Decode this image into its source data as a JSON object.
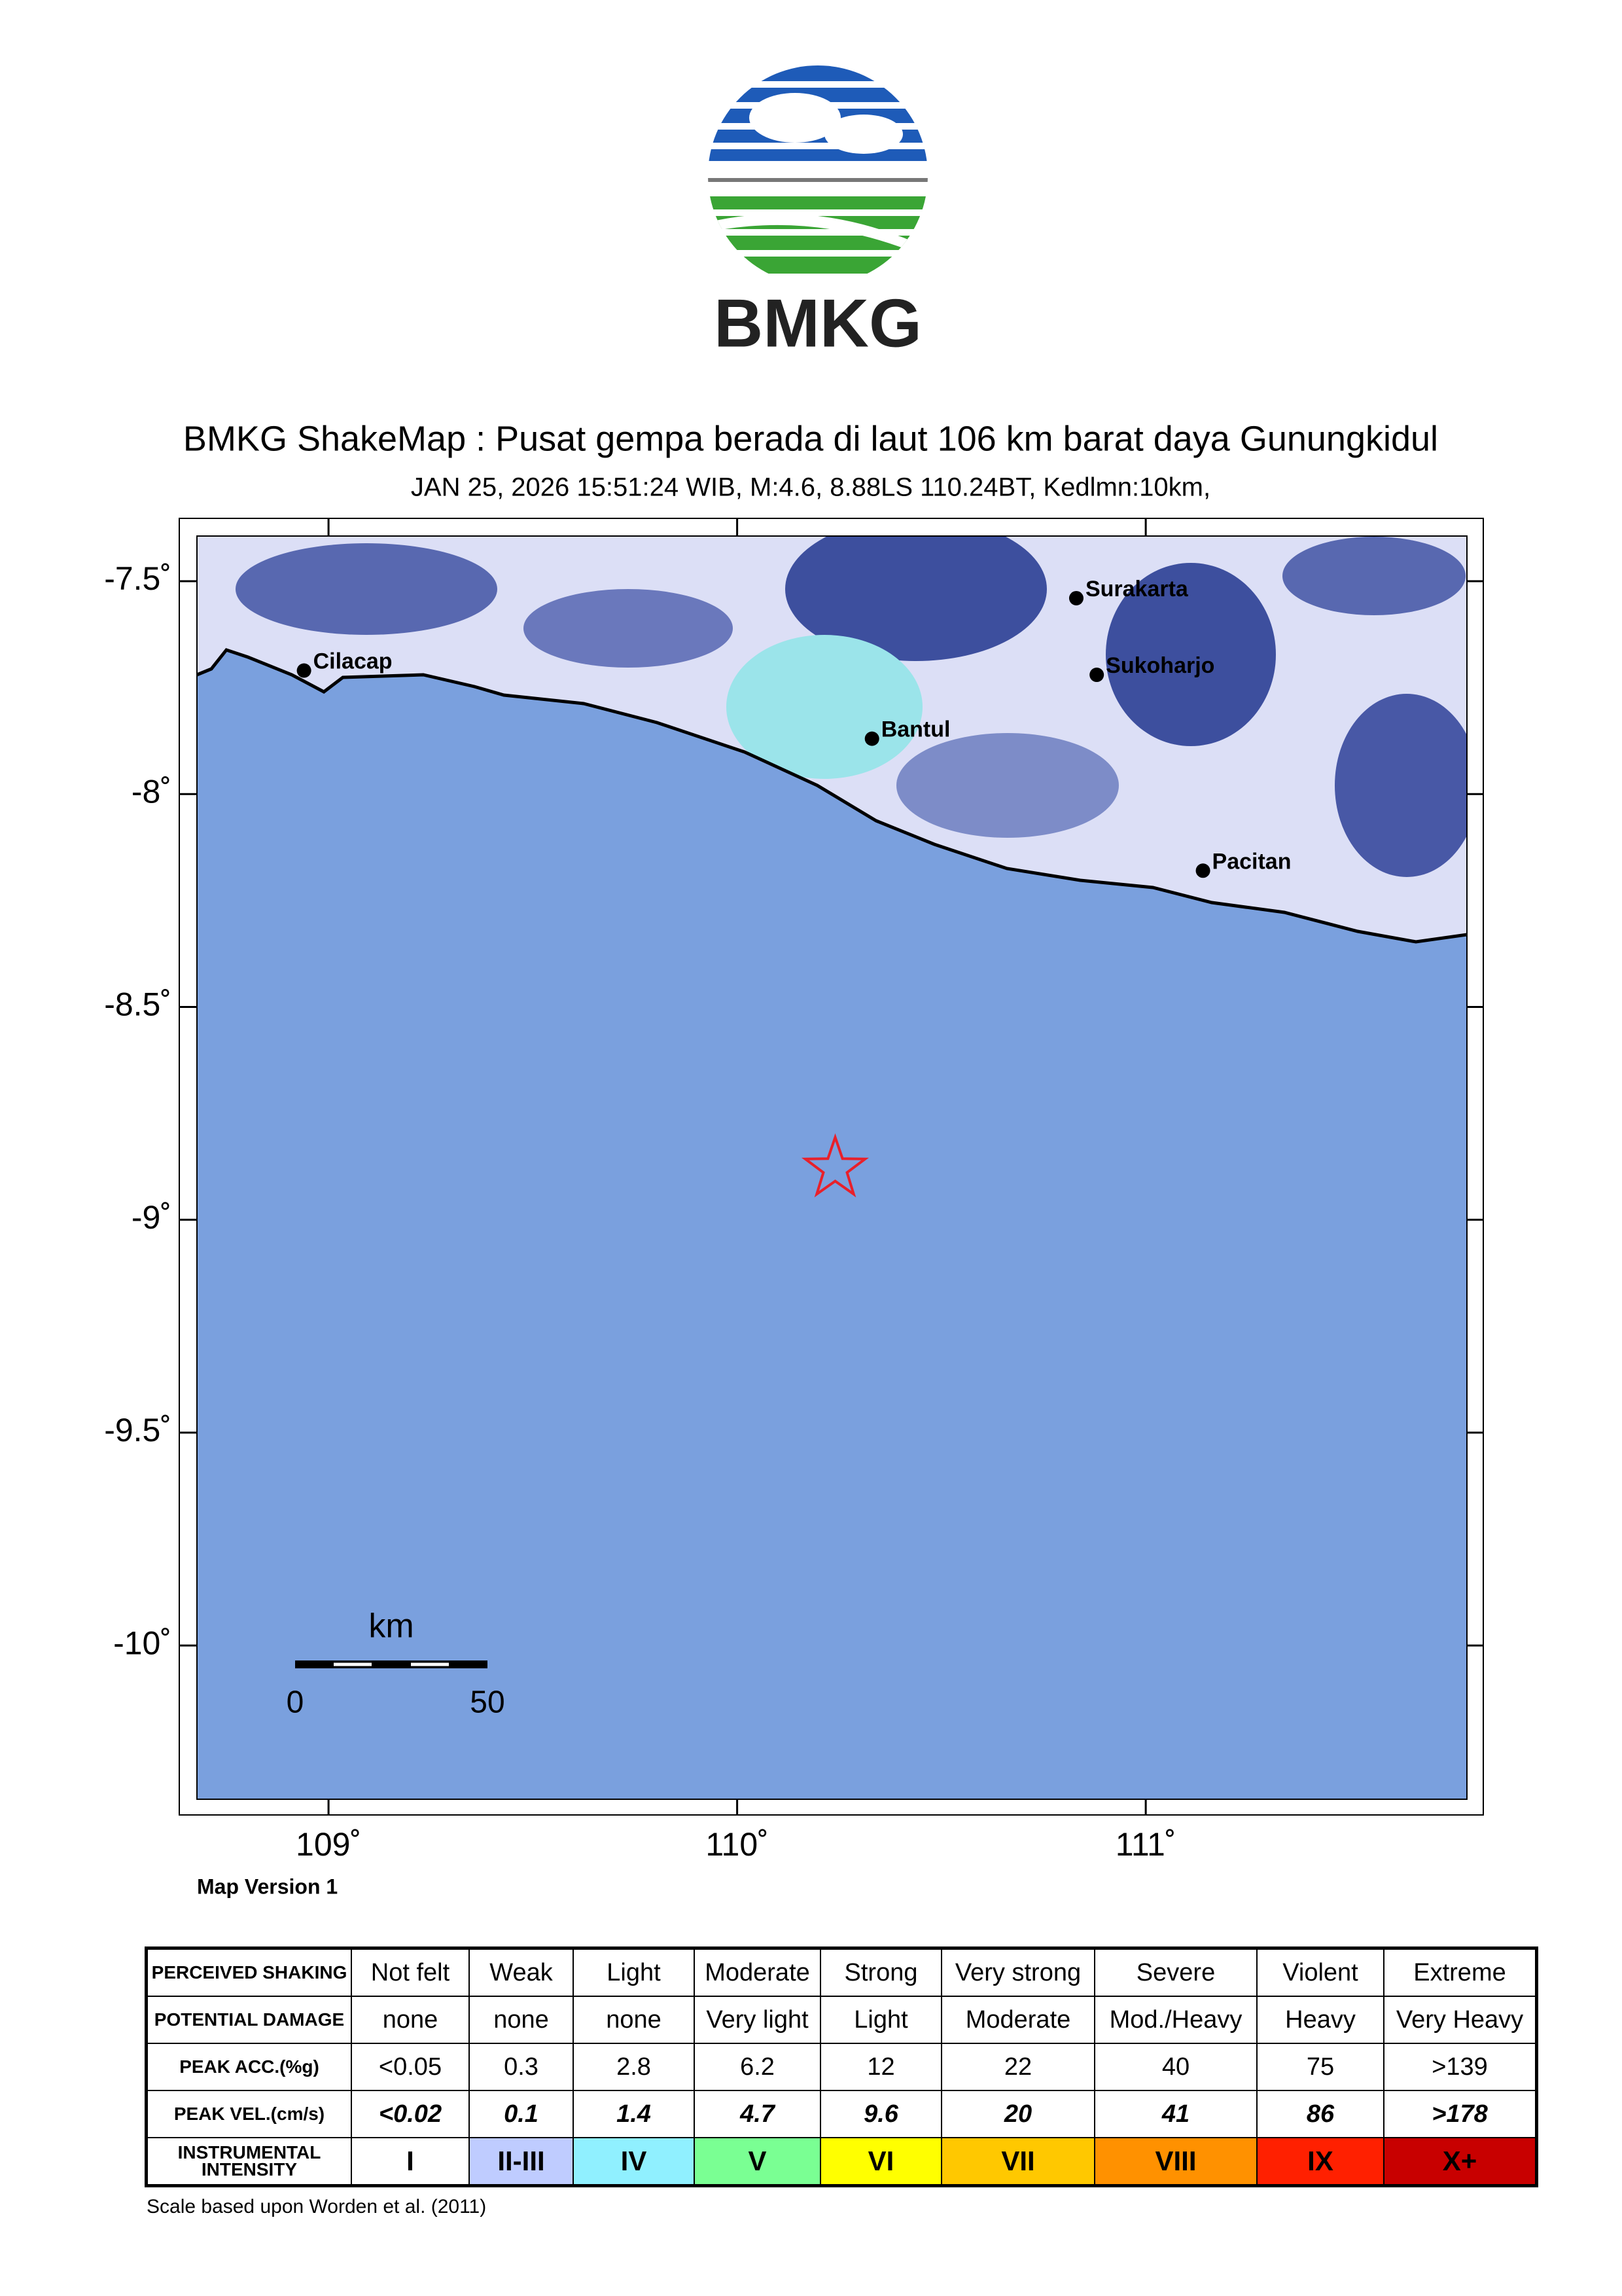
{
  "logo": {
    "text": "BMKG"
  },
  "chart_data": {
    "type": "map",
    "title": "BMKG ShakeMap : Pusat gempa berada di laut 106 km barat daya Gunungkidul",
    "subtitle": "JAN 25, 2026 15:51:24 WIB, M:4.6, 8.88LS 110.24BT, Kedlmn:10km,",
    "xlim": [
      108.678,
      111.786
    ],
    "ylim": [
      -10.361,
      -7.394
    ],
    "xticks": [
      {
        "value": 109,
        "label": "109˚"
      },
      {
        "value": 110,
        "label": "110˚"
      },
      {
        "value": 111,
        "label": "111˚"
      }
    ],
    "yticks": [
      {
        "value": -7.5,
        "label": "-7.5˚"
      },
      {
        "value": -8,
        "label": "-8˚"
      },
      {
        "value": -8.5,
        "label": "-8.5˚"
      },
      {
        "value": -9,
        "label": "-9˚"
      },
      {
        "value": -9.5,
        "label": "-9.5˚"
      },
      {
        "value": -10,
        "label": "-10˚"
      }
    ],
    "cities": [
      {
        "name": "Cilacap",
        "lat": -7.71,
        "lon": 108.94
      },
      {
        "name": "Bantul",
        "lat": -7.87,
        "lon": 110.33
      },
      {
        "name": "Surakarta",
        "lat": -7.54,
        "lon": 110.83
      },
      {
        "name": "Sukoharjo",
        "lat": -7.72,
        "lon": 110.88
      },
      {
        "name": "Pacitan",
        "lat": -8.18,
        "lon": 111.14
      }
    ],
    "epicenter": {
      "lat": -8.88,
      "lon": 110.24,
      "color": "#e8202a"
    },
    "scale_bar": {
      "label": "km",
      "ticks": [
        0,
        50
      ]
    },
    "map_version": "Map Version 1"
  },
  "legend_table": {
    "rows": [
      {
        "header": "PERCEIVED SHAKING",
        "cells": [
          "Not felt",
          "Weak",
          "Light",
          "Moderate",
          "Strong",
          "Very strong",
          "Severe",
          "Violent",
          "Extreme"
        ]
      },
      {
        "header": "POTENTIAL DAMAGE",
        "cells": [
          "none",
          "none",
          "none",
          "Very light",
          "Light",
          "Moderate",
          "Mod./Heavy",
          "Heavy",
          "Very Heavy"
        ]
      },
      {
        "header": "PEAK ACC.(%g)",
        "cells": [
          "<0.05",
          "0.3",
          "2.8",
          "6.2",
          "12",
          "22",
          "40",
          "75",
          ">139"
        ]
      },
      {
        "header": "PEAK VEL.(cm/s)",
        "cells": [
          "<0.02",
          "0.1",
          "1.4",
          "4.7",
          "9.6",
          "20",
          "41",
          "86",
          ">178"
        ]
      },
      {
        "header": "INSTRUMENTAL INTENSITY",
        "cells": [
          "I",
          "II-III",
          "IV",
          "V",
          "VI",
          "VII",
          "VIII",
          "IX",
          "X+"
        ]
      }
    ],
    "colors": [
      "#ffffff",
      "#bfccff",
      "#90f0ff",
      "#7aff93",
      "#ffff00",
      "#ffc800",
      "#ff9100",
      "#ff2000",
      "#c80000"
    ]
  },
  "footnote": "Scale based upon Worden et al. (2011)"
}
